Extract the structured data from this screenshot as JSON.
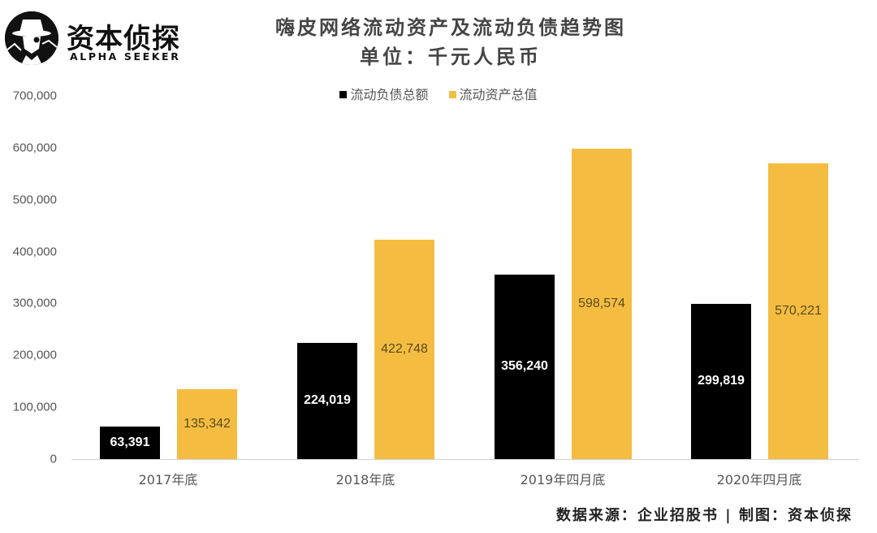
{
  "logo": {
    "name_cn": "资本侦探",
    "name_en": "ALPHA SEEKER"
  },
  "title": {
    "line1": "嗨皮网络流动资产及流动负债趋势图",
    "line2": "单位：千元人民币"
  },
  "legend": [
    {
      "label": "流动负债总额",
      "color": "#000000"
    },
    {
      "label": "流动资产总值",
      "color": "#F4BD41"
    }
  ],
  "footer": "数据来源：企业招股书 | 制图：资本侦探",
  "colors": {
    "liabilities": "#000000",
    "assets": "#F4BD41",
    "axis": "#D0D0D0",
    "text": "#555555"
  },
  "chart_data": {
    "type": "bar",
    "title": "嗨皮网络流动资产及流动负债趋势图",
    "subtitle": "单位：千元人民币",
    "xlabel": "",
    "ylabel": "",
    "categories": [
      "2017年底",
      "2018年底",
      "2019年四月底",
      "2020年四月底"
    ],
    "series": [
      {
        "name": "流动负债总额",
        "values": [
          63391,
          224019,
          356240,
          299819
        ],
        "labels": [
          "63,391",
          "224,019",
          "356,240",
          "299,819"
        ],
        "color": "#000000"
      },
      {
        "name": "流动资产总值",
        "values": [
          135342,
          422748,
          598574,
          570221
        ],
        "labels": [
          "135,342",
          "422,748",
          "598,574",
          "570,221"
        ],
        "color": "#F4BD41"
      }
    ],
    "ylim": [
      0,
      700000
    ],
    "yticks": [
      "0",
      "100,000",
      "200,000",
      "300,000",
      "400,000",
      "500,000",
      "600,000",
      "700,000"
    ],
    "grid": false,
    "legend_position": "top"
  }
}
